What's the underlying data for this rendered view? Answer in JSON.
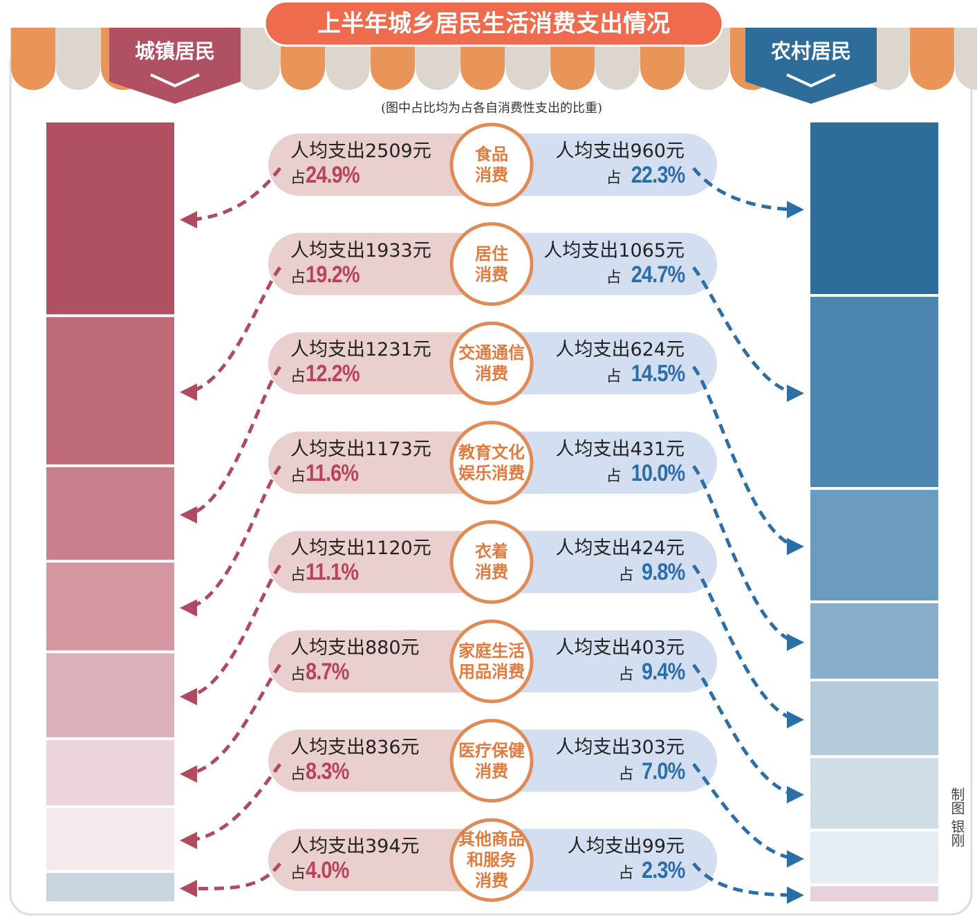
{
  "chart_data": {
    "type": "paired-stack",
    "title": "上半年城乡居民生活消费支出情况",
    "note": "(图中占比均为占各自消费性支出的比重)",
    "credit": "制图 银刚",
    "spend_prefix": "人均支出",
    "spend_suffix": "元",
    "share_prefix": "占",
    "categories": [
      "食品\n消费",
      "居住\n消费",
      "交通通信\n消费",
      "教育文化\n娱乐消费",
      "衣着\n消费",
      "家庭生活\n用品消费",
      "医疗保健\n消费",
      "其他商品\n和服务\n消费"
    ],
    "ylim": [
      0,
      100
    ],
    "series": [
      {
        "name": "城镇居民",
        "color": "#b8435b",
        "colors": [
          "#b05063",
          "#bf6a78",
          "#c8808e",
          "#d497a2",
          "#dcb0b9",
          "#ecd5da",
          "#f5ebed",
          "#c8d4de"
        ],
        "spend": [
          2509,
          1933,
          1231,
          1173,
          1120,
          880,
          836,
          394
        ],
        "values": [
          24.9,
          19.2,
          12.2,
          11.6,
          11.1,
          8.7,
          8.3,
          4.0
        ],
        "value_labels": [
          "24.9%",
          "19.2%",
          "12.2%",
          "11.6%",
          "11.1%",
          "8.7%",
          "8.3%",
          "4.0%"
        ]
      },
      {
        "name": "农村居民",
        "color": "#2c6ea6",
        "colors": [
          "#2e6d9a",
          "#4c86af",
          "#6b9cc0",
          "#89aecb",
          "#b4cbdc",
          "#cfdde7",
          "#e6ecf3",
          "#e6d2dc"
        ],
        "spend": [
          960,
          1065,
          624,
          431,
          424,
          403,
          303,
          99
        ],
        "values": [
          22.3,
          24.7,
          14.5,
          10.0,
          9.8,
          9.4,
          7.0,
          2.3
        ],
        "value_labels": [
          "22.3%",
          "24.7%",
          "14.5%",
          "10.0%",
          "9.8%",
          "9.4%",
          "7.0%",
          "2.3%"
        ]
      }
    ]
  }
}
